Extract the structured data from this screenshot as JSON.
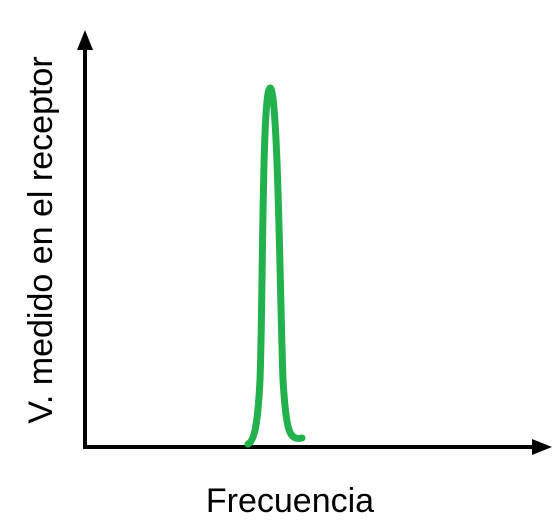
{
  "y_axis": {
    "label": "V. medido en el receptor"
  },
  "x_axis": {
    "label": "Frecuencia"
  }
}
